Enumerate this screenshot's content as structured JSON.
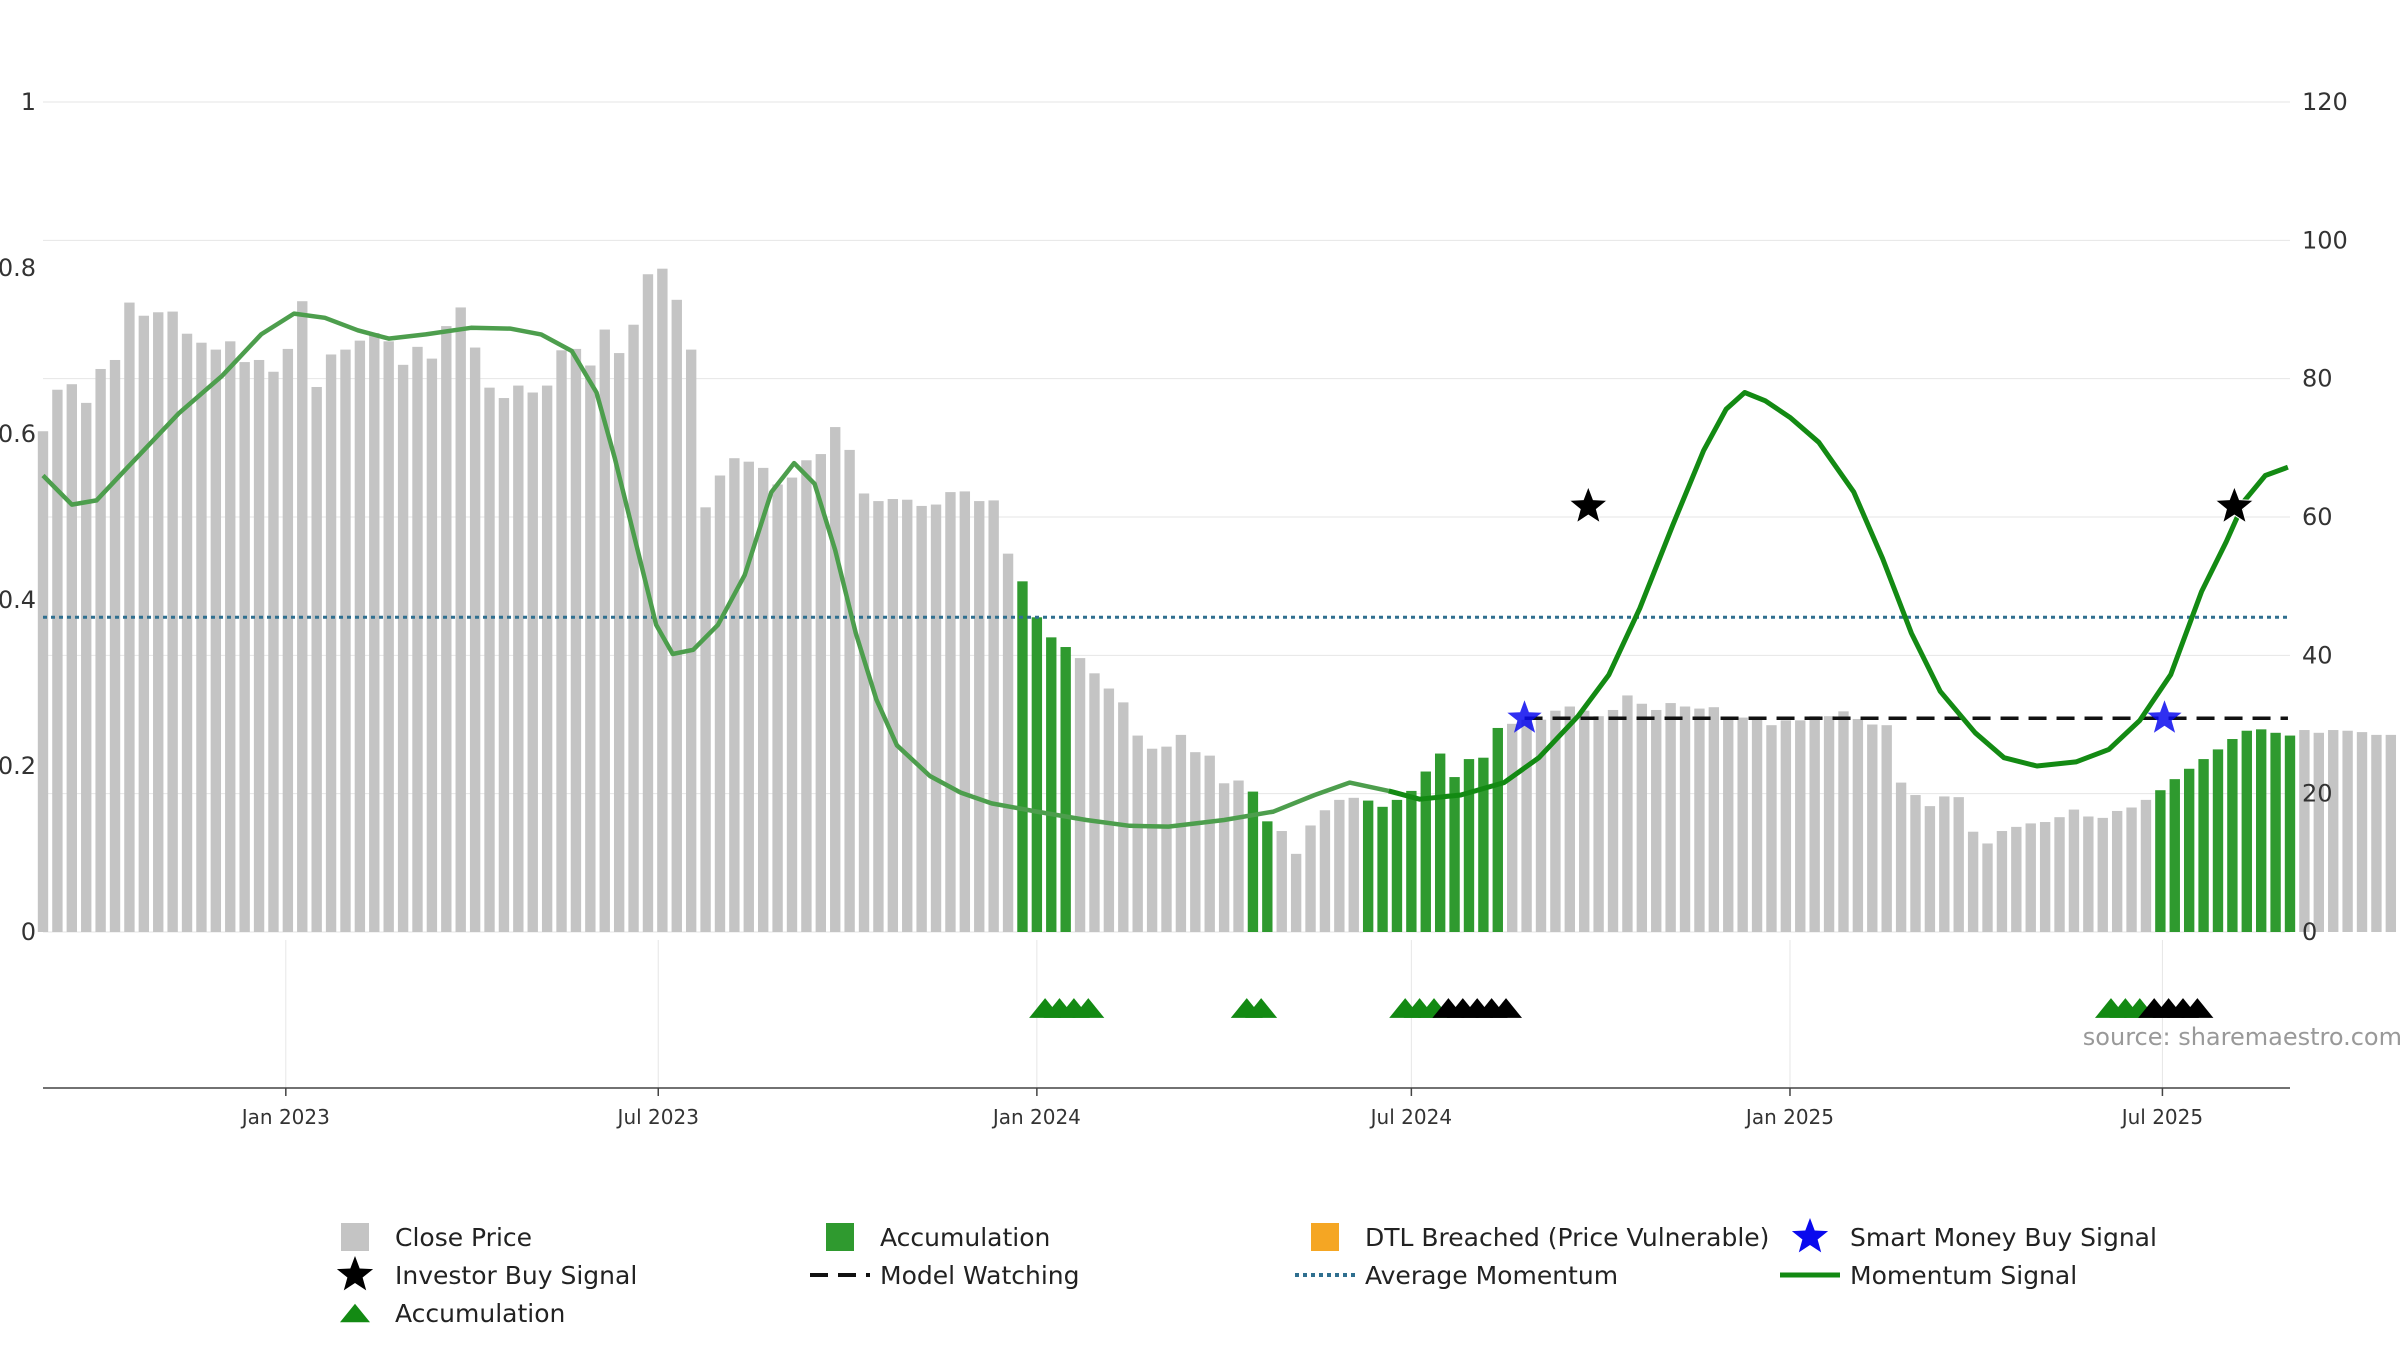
{
  "chart_data": {
    "type": "bar",
    "source_label": "source: sharemaestro.com",
    "left_axis": {
      "ylim": [
        0,
        1
      ],
      "ticks": [
        "0",
        "0.2",
        "0.4",
        "0.6",
        "0.8",
        "1"
      ],
      "tick_values": [
        0,
        0.2,
        0.4,
        0.6,
        0.8,
        1.0
      ]
    },
    "right_axis": {
      "ylim": [
        0,
        120
      ],
      "ticks": [
        "0",
        "20",
        "40",
        "60",
        "80",
        "100",
        "120"
      ],
      "tick_values": [
        0,
        20,
        40,
        60,
        80,
        100,
        120
      ]
    },
    "x_axis": {
      "range": [
        "2022-09-05",
        "2025-09-01"
      ],
      "ticks": [
        {
          "label": "Jan 2023",
          "date": "2023-01-01"
        },
        {
          "label": "Jul 2023",
          "date": "2023-07-01"
        },
        {
          "label": "Jan 2024",
          "date": "2024-01-01"
        },
        {
          "label": "Jul 2024",
          "date": "2024-07-01"
        },
        {
          "label": "Jan 2025",
          "date": "2025-01-01"
        },
        {
          "label": "Jul 2025",
          "date": "2025-07-01"
        }
      ]
    },
    "grid": true,
    "legend_position": "bottom",
    "colors": {
      "close_price": "#c4c4c4",
      "accumulation": "#2f9a2f",
      "dtl_breached": "#f5a623",
      "momentum": "#138a13",
      "momentum_early": "#4d9e4d",
      "average_momentum": "#2f6f8f",
      "model_watching": "#111111",
      "investor_star": "#000000",
      "smart_money_star": "#0a0aee",
      "marker_green": "#138a13",
      "marker_black": "#000000",
      "grid": "#e6e6e6",
      "axis": "#444444",
      "source_text": "#999999"
    },
    "series": [
      {
        "name": "Close Price",
        "kind": "bar",
        "start_date": "2022-09-05",
        "interval_days": 7,
        "values": [
          72.4,
          78.4,
          79.2,
          76.5,
          81.4,
          82.7,
          91.0,
          89.1,
          89.6,
          89.7,
          86.5,
          85.2,
          84.2,
          85.4,
          82.4,
          82.7,
          81.0,
          84.3,
          91.2,
          78.8,
          83.5,
          84.2,
          85.5,
          86.6,
          85.4,
          82.0,
          84.6,
          82.9,
          87.6,
          90.3,
          84.5,
          78.7,
          77.2,
          79.0,
          78.0,
          79.0,
          84.1,
          84.3,
          81.9,
          87.1,
          83.7,
          87.8,
          95.1,
          95.9,
          91.4,
          84.2,
          61.4,
          66.0,
          68.5,
          68.0,
          67.1,
          64.7,
          65.7,
          68.2,
          69.1,
          73.0,
          69.7,
          63.4,
          62.3,
          62.6,
          62.5,
          61.6,
          61.8,
          63.6,
          63.7,
          62.3,
          62.4,
          54.7,
          50.7,
          45.5,
          42.6,
          41.2,
          39.6,
          37.4,
          35.2,
          33.2,
          28.4,
          26.5,
          26.8,
          28.5,
          26.0,
          25.5,
          21.5,
          21.9,
          20.3,
          16.0,
          14.6,
          11.3,
          15.4,
          17.6,
          19.1,
          19.4,
          19.0,
          18.1,
          19.1,
          20.4,
          23.2,
          25.8,
          22.4,
          25.0,
          25.2,
          29.5,
          30.1,
          30.7,
          30.7,
          32.0,
          32.6,
          32.0,
          31.2,
          32.1,
          34.2,
          33.0,
          32.1,
          33.1,
          32.6,
          32.3,
          32.5,
          31.1,
          31.0,
          30.8,
          29.9,
          30.6,
          30.6,
          31.2,
          31.2,
          31.9,
          30.8,
          30.0,
          29.9,
          21.6,
          19.8,
          18.2,
          19.6,
          19.5,
          14.5,
          12.8,
          14.6,
          15.2,
          15.7,
          15.9,
          16.6,
          17.7,
          16.7,
          16.5,
          17.5,
          18.0,
          19.1,
          20.5,
          22.1,
          23.6,
          25.0,
          26.4,
          27.9,
          29.1,
          29.3,
          28.8,
          28.4,
          29.2,
          28.8,
          29.2,
          29.1,
          28.9,
          28.5,
          28.5,
          25.3
        ],
        "accumulation_indices": [
          68,
          69,
          70,
          71,
          84,
          85,
          92,
          93,
          94,
          95,
          96,
          97,
          98,
          99,
          100,
          101,
          147,
          148,
          149,
          150,
          151,
          152,
          153,
          154,
          155,
          156
        ]
      },
      {
        "name": "Momentum Signal",
        "kind": "line",
        "points": [
          [
            "2022-09-05",
            0.55
          ],
          [
            "2022-09-19",
            0.515
          ],
          [
            "2022-10-01",
            0.52
          ],
          [
            "2022-10-20",
            0.57
          ],
          [
            "2022-11-10",
            0.625
          ],
          [
            "2022-12-01",
            0.67
          ],
          [
            "2022-12-20",
            0.72
          ],
          [
            "2023-01-05",
            0.745
          ],
          [
            "2023-01-20",
            0.74
          ],
          [
            "2023-02-05",
            0.725
          ],
          [
            "2023-02-20",
            0.715
          ],
          [
            "2023-03-10",
            0.72
          ],
          [
            "2023-04-01",
            0.728
          ],
          [
            "2023-04-20",
            0.727
          ],
          [
            "2023-05-05",
            0.72
          ],
          [
            "2023-05-20",
            0.7
          ],
          [
            "2023-06-01",
            0.65
          ],
          [
            "2023-06-10",
            0.57
          ],
          [
            "2023-06-20",
            0.47
          ],
          [
            "2023-06-30",
            0.37
          ],
          [
            "2023-07-08",
            0.335
          ],
          [
            "2023-07-18",
            0.34
          ],
          [
            "2023-07-30",
            0.37
          ],
          [
            "2023-08-12",
            0.43
          ],
          [
            "2023-08-25",
            0.53
          ],
          [
            "2023-09-05",
            0.565
          ],
          [
            "2023-09-15",
            0.54
          ],
          [
            "2023-09-25",
            0.46
          ],
          [
            "2023-10-05",
            0.36
          ],
          [
            "2023-10-15",
            0.28
          ],
          [
            "2023-10-25",
            0.225
          ],
          [
            "2023-11-10",
            0.188
          ],
          [
            "2023-11-25",
            0.168
          ],
          [
            "2023-12-10",
            0.155
          ],
          [
            "2024-01-01",
            0.145
          ],
          [
            "2024-01-25",
            0.135
          ],
          [
            "2024-02-15",
            0.128
          ],
          [
            "2024-03-05",
            0.127
          ],
          [
            "2024-04-01",
            0.135
          ],
          [
            "2024-04-25",
            0.145
          ],
          [
            "2024-05-15",
            0.165
          ],
          [
            "2024-06-01",
            0.18
          ],
          [
            "2024-06-20",
            0.17
          ],
          [
            "2024-07-05",
            0.16
          ],
          [
            "2024-07-25",
            0.165
          ],
          [
            "2024-08-15",
            0.18
          ],
          [
            "2024-09-01",
            0.21
          ],
          [
            "2024-09-20",
            0.26
          ],
          [
            "2024-10-05",
            0.31
          ],
          [
            "2024-10-20",
            0.39
          ],
          [
            "2024-11-05",
            0.49
          ],
          [
            "2024-11-20",
            0.58
          ],
          [
            "2024-12-01",
            0.63
          ],
          [
            "2024-12-10",
            0.65
          ],
          [
            "2024-12-20",
            0.64
          ],
          [
            "2025-01-01",
            0.62
          ],
          [
            "2025-01-15",
            0.59
          ],
          [
            "2025-02-01",
            0.53
          ],
          [
            "2025-02-15",
            0.45
          ],
          [
            "2025-03-01",
            0.36
          ],
          [
            "2025-03-15",
            0.29
          ],
          [
            "2025-04-01",
            0.24
          ],
          [
            "2025-04-15",
            0.21
          ],
          [
            "2025-05-01",
            0.2
          ],
          [
            "2025-05-20",
            0.205
          ],
          [
            "2025-06-05",
            0.22
          ],
          [
            "2025-06-20",
            0.255
          ],
          [
            "2025-07-05",
            0.31
          ],
          [
            "2025-07-20",
            0.41
          ],
          [
            "2025-08-01",
            0.47
          ],
          [
            "2025-08-10",
            0.52
          ],
          [
            "2025-08-20",
            0.55
          ],
          [
            "2025-08-31",
            0.56
          ]
        ]
      },
      {
        "name": "Average Momentum",
        "kind": "hline",
        "value": 45.5
      },
      {
        "name": "Model Watching",
        "kind": "segment",
        "value": 30.9,
        "from": "2024-08-25",
        "to": "2025-08-31"
      },
      {
        "name": "Investor Buy Signal",
        "kind": "marker",
        "points": [
          [
            "2024-09-25",
            61.5
          ],
          [
            "2025-08-05",
            61.5
          ]
        ]
      },
      {
        "name": "Smart Money Buy Signal",
        "kind": "marker",
        "points": [
          [
            "2024-08-25",
            30.9
          ],
          [
            "2025-07-02",
            30.9
          ]
        ]
      },
      {
        "name": "Accumulation Markers",
        "kind": "marker",
        "green_dates": [
          "2024-01-05",
          "2024-01-12",
          "2024-01-19",
          "2024-01-26",
          "2024-04-12",
          "2024-04-19",
          "2024-06-28",
          "2024-07-05",
          "2024-07-12",
          "2025-06-06",
          "2025-06-13",
          "2025-06-20"
        ],
        "black_dates": [
          "2024-07-19",
          "2024-07-26",
          "2024-08-02",
          "2024-08-09",
          "2024-08-16",
          "2025-06-27",
          "2025-07-04",
          "2025-07-11",
          "2025-07-18"
        ]
      }
    ],
    "legend": [
      {
        "label": "Close Price",
        "symbol": "square",
        "color": "#c4c4c4"
      },
      {
        "label": "Accumulation",
        "symbol": "square",
        "color": "#2f9a2f"
      },
      {
        "label": "DTL Breached (Price Vulnerable)",
        "symbol": "square",
        "color": "#f5a623"
      },
      {
        "label": "Smart Money Buy Signal",
        "symbol": "star",
        "color": "#0a0aee"
      },
      {
        "label": "Investor Buy Signal",
        "symbol": "star",
        "color": "#000000"
      },
      {
        "label": "Model Watching",
        "symbol": "dash",
        "color": "#111111"
      },
      {
        "label": "Average Momentum",
        "symbol": "dot",
        "color": "#2f6f8f"
      },
      {
        "label": "Momentum Signal",
        "symbol": "line",
        "color": "#138a13"
      },
      {
        "label": "Accumulation",
        "symbol": "triangle",
        "color": "#138a13"
      }
    ]
  }
}
